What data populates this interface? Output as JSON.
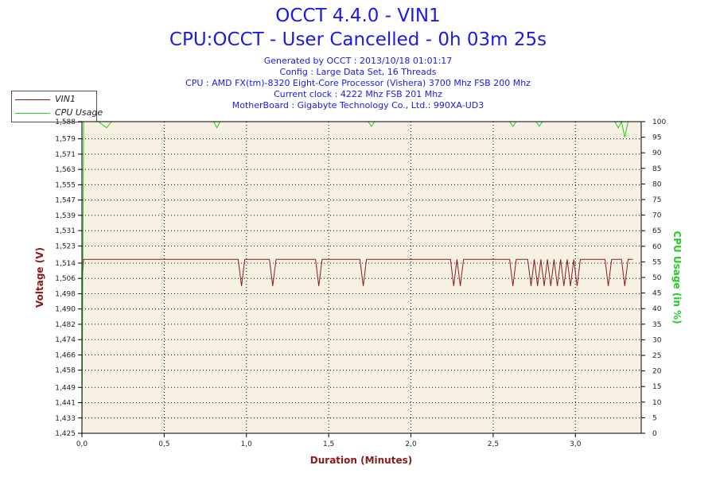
{
  "header": {
    "title": "OCCT 4.4.0 - VIN1",
    "subtitle": "CPU:OCCT - User Cancelled - 0h 03m 25s",
    "info_lines": [
      "Generated by OCCT : 2013/10/18 01:01:17",
      "Config : Large Data Set, 16 Threads",
      "CPU : AMD FX(tm)-8320 Eight-Core Processor (Vishera) 3700 Mhz FSB 200 Mhz",
      "Current clock : 4222 Mhz FSB 201 Mhz",
      "MotherBoard : Gigabyte Technology Co., Ltd.: 990XA-UD3"
    ]
  },
  "colors": {
    "title": "#1a1ae6",
    "vin1": "#8b1a1a",
    "cpu_usage": "#22cc22",
    "plot_background": "#f7f1e3",
    "grid": "#000000",
    "axis_label_left": "#8b1a1a",
    "axis_label_right": "#22cc22"
  },
  "chart_data": {
    "type": "line",
    "title": "OCCT 4.4.0 - VIN1",
    "xlabel": "Duration (Minutes)",
    "ylabel": "Voltage (V)",
    "y2label": "CPU Usage (in %)",
    "xlim": [
      0,
      3.4
    ],
    "ylim": [
      1.425,
      1.588
    ],
    "y2lim": [
      0,
      100
    ],
    "x_ticks": [
      "0,0",
      "0,5",
      "1,0",
      "1,5",
      "2,0",
      "2,5",
      "3,0"
    ],
    "x_tick_values": [
      0,
      0.5,
      1.0,
      1.5,
      2.0,
      2.5,
      3.0
    ],
    "y_ticks": [
      "1,425",
      "1,433",
      "1,441",
      "1,449",
      "1,458",
      "1,466",
      "1,474",
      "1,482",
      "1,490",
      "1,498",
      "1,506",
      "1,514",
      "1,523",
      "1,531",
      "1,539",
      "1,547",
      "1,555",
      "1,563",
      "1,571",
      "1,579",
      "1,588"
    ],
    "y_tick_values": [
      1.425,
      1.433,
      1.441,
      1.449,
      1.458,
      1.466,
      1.474,
      1.482,
      1.49,
      1.498,
      1.506,
      1.514,
      1.523,
      1.531,
      1.539,
      1.547,
      1.555,
      1.563,
      1.571,
      1.579,
      1.588
    ],
    "y2_ticks": [
      "0",
      "5",
      "10",
      "15",
      "20",
      "25",
      "30",
      "35",
      "40",
      "45",
      "50",
      "55",
      "60",
      "65",
      "70",
      "75",
      "80",
      "85",
      "90",
      "95",
      "100"
    ],
    "y2_tick_values": [
      0,
      5,
      10,
      15,
      20,
      25,
      30,
      35,
      40,
      45,
      50,
      55,
      60,
      65,
      70,
      75,
      80,
      85,
      90,
      95,
      100
    ],
    "grid": true,
    "legend_position": "top-left",
    "series": [
      {
        "name": "VIN1",
        "axis": "left",
        "color": "#8b1a1a",
        "x": [
          0.0,
          0.01,
          0.02,
          0.95,
          0.97,
          0.99,
          1.14,
          1.16,
          1.18,
          1.42,
          1.44,
          1.46,
          1.69,
          1.71,
          1.73,
          2.24,
          2.26,
          2.28,
          2.3,
          2.32,
          2.34,
          2.6,
          2.62,
          2.64,
          2.71,
          2.73,
          2.75,
          2.77,
          2.79,
          2.81,
          2.83,
          2.85,
          2.87,
          2.89,
          2.91,
          2.93,
          2.95,
          2.97,
          2.99,
          3.01,
          3.03,
          3.05,
          3.18,
          3.2,
          3.22,
          3.28,
          3.3,
          3.32,
          3.35
        ],
        "y": [
          1.502,
          1.516,
          1.516,
          1.516,
          1.502,
          1.516,
          1.516,
          1.502,
          1.516,
          1.516,
          1.502,
          1.516,
          1.516,
          1.502,
          1.516,
          1.516,
          1.502,
          1.516,
          1.502,
          1.516,
          1.516,
          1.516,
          1.502,
          1.516,
          1.516,
          1.502,
          1.516,
          1.502,
          1.516,
          1.502,
          1.516,
          1.502,
          1.516,
          1.502,
          1.516,
          1.502,
          1.516,
          1.502,
          1.516,
          1.502,
          1.516,
          1.516,
          1.516,
          1.502,
          1.516,
          1.516,
          1.502,
          1.516,
          1.516
        ]
      },
      {
        "name": "CPU Usage",
        "axis": "right",
        "color": "#22cc22",
        "x": [
          0.0,
          0.01,
          0.02,
          0.05,
          0.1,
          0.15,
          0.18,
          0.25,
          0.5,
          0.8,
          0.82,
          0.84,
          0.94,
          1.0,
          1.1,
          1.2,
          1.4,
          1.6,
          1.74,
          1.76,
          1.78,
          2.0,
          2.2,
          2.4,
          2.6,
          2.62,
          2.64,
          2.7,
          2.76,
          2.78,
          2.8,
          2.9,
          3.0,
          3.1,
          3.2,
          3.24,
          3.26,
          3.28,
          3.3,
          3.32,
          3.35
        ],
        "y": [
          0,
          100,
          100,
          100,
          100,
          98,
          100,
          100,
          100,
          100,
          98,
          100,
          100,
          100,
          100,
          100,
          100,
          100,
          100,
          98.5,
          100,
          100,
          100,
          100,
          100,
          98.5,
          100,
          100,
          100,
          98.5,
          100,
          100,
          100,
          100,
          100,
          100,
          98,
          100,
          95,
          100,
          100
        ]
      }
    ]
  }
}
